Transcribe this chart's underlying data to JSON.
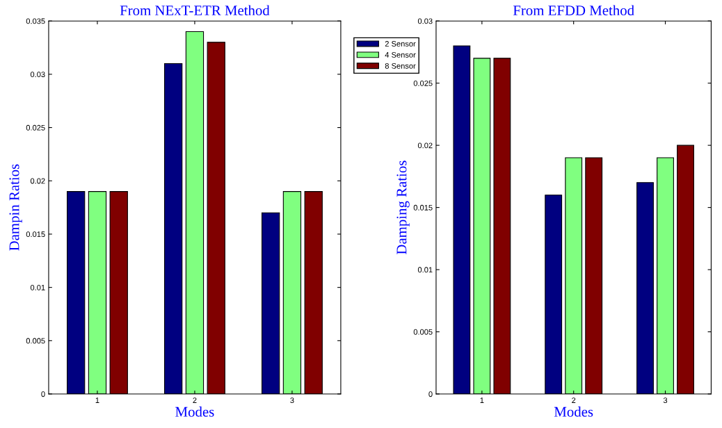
{
  "chart_data": [
    {
      "type": "bar",
      "title": "From NExT-ETR Method",
      "xlabel": "Modes",
      "ylabel": "Dampin Ratios",
      "categories": [
        "1",
        "2",
        "3"
      ],
      "series": [
        {
          "name": "2 Sensor",
          "color": "#000080",
          "values": [
            0.019,
            0.031,
            0.017
          ]
        },
        {
          "name": "4 Sensor",
          "color": "#80ff80",
          "values": [
            0.019,
            0.034,
            0.019
          ]
        },
        {
          "name": "8 Sensor",
          "color": "#800000",
          "values": [
            0.019,
            0.033,
            0.019
          ]
        }
      ],
      "ylim": [
        0,
        0.035
      ],
      "yticks": [
        0,
        0.005,
        0.01,
        0.015,
        0.02,
        0.025,
        0.03,
        0.035
      ],
      "legend": "right"
    },
    {
      "type": "bar",
      "title": "From EFDD Method",
      "xlabel": "Modes",
      "ylabel": "Damping Ratios",
      "categories": [
        "1",
        "2",
        "3"
      ],
      "series": [
        {
          "color": "#000080",
          "values": [
            0.028,
            0.016,
            0.017
          ]
        },
        {
          "color": "#80ff80",
          "values": [
            0.027,
            0.019,
            0.019
          ]
        },
        {
          "color": "#800000",
          "values": [
            0.027,
            0.019,
            0.02
          ]
        }
      ],
      "ylim": [
        0,
        0.03
      ],
      "yticks": [
        0,
        0.005,
        0.01,
        0.015,
        0.02,
        0.025,
        0.03
      ]
    }
  ]
}
